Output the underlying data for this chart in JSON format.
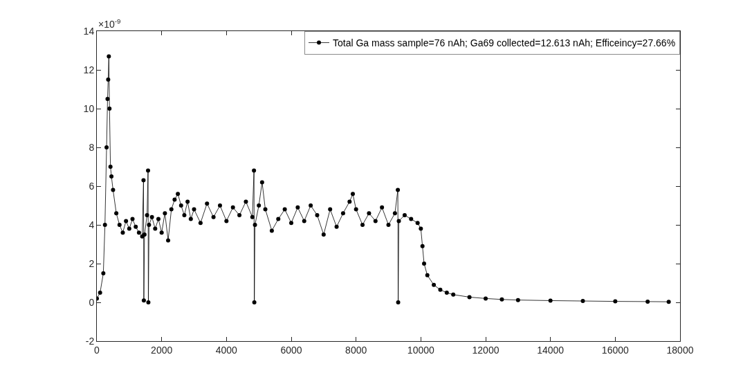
{
  "chart_data": {
    "type": "line",
    "xlim": [
      0,
      18000
    ],
    "ylim": [
      -2,
      14
    ],
    "xticks": [
      0,
      2000,
      4000,
      6000,
      8000,
      10000,
      12000,
      14000,
      16000,
      18000
    ],
    "yticks": [
      -2,
      0,
      2,
      4,
      6,
      8,
      10,
      12,
      14
    ],
    "annotations": [
      "×10$^{-9}$"
    ],
    "legend": "top right",
    "marker": "circle",
    "line_style": "solid",
    "series": [
      {
        "name": "Total Ga mass sample=76 nAh; Ga69 collected=12.613 nAh; Efficeincy=27.66%",
        "color": "#000000",
        "x": [
          0,
          100,
          200,
          250,
          300,
          330,
          350,
          370,
          390,
          420,
          450,
          500,
          600,
          700,
          800,
          900,
          1000,
          1100,
          1200,
          1300,
          1400,
          1440,
          1450,
          1470,
          1550,
          1580,
          1590,
          1610,
          1700,
          1800,
          1900,
          2000,
          2100,
          2200,
          2300,
          2400,
          2500,
          2600,
          2700,
          2800,
          2900,
          3000,
          3200,
          3400,
          3600,
          3800,
          4000,
          4200,
          4400,
          4600,
          4800,
          4850,
          4860,
          4880,
          5000,
          5100,
          5200,
          5400,
          5600,
          5800,
          6000,
          6200,
          6400,
          6600,
          6800,
          7000,
          7200,
          7400,
          7600,
          7800,
          7900,
          8000,
          8200,
          8400,
          8600,
          8800,
          9000,
          9200,
          9290,
          9300,
          9320,
          9500,
          9700,
          9900,
          10000,
          10050,
          10100,
          10200,
          10400,
          10600,
          10800,
          11000,
          11500,
          12000,
          12500,
          13000,
          14000,
          15000,
          16000,
          17000,
          17650
        ],
        "values": [
          0.2,
          0.5,
          1.5,
          4,
          8,
          10.5,
          11.5,
          12.7,
          10,
          7,
          6.5,
          5.8,
          4.6,
          4.0,
          3.6,
          4.2,
          3.8,
          4.3,
          3.9,
          3.6,
          3.4,
          6.3,
          0.1,
          3.5,
          4.5,
          6.8,
          0.0,
          4.0,
          4.4,
          3.8,
          4.3,
          3.6,
          4.6,
          3.2,
          4.8,
          5.3,
          5.6,
          5.0,
          4.5,
          5.2,
          4.3,
          4.8,
          4.1,
          5.1,
          4.4,
          5.0,
          4.2,
          4.9,
          4.5,
          5.2,
          4.4,
          6.8,
          0.0,
          4.0,
          5.0,
          6.2,
          4.8,
          3.7,
          4.3,
          4.8,
          4.1,
          4.9,
          4.2,
          5.0,
          4.5,
          3.5,
          4.8,
          3.9,
          4.6,
          5.2,
          5.6,
          4.8,
          4.0,
          4.6,
          4.2,
          4.9,
          4.0,
          4.6,
          5.8,
          0.0,
          4.2,
          4.5,
          4.3,
          4.1,
          3.8,
          2.9,
          2.0,
          1.4,
          0.9,
          0.65,
          0.5,
          0.4,
          0.27,
          0.2,
          0.15,
          0.12,
          0.09,
          0.07,
          0.05,
          0.04,
          0.03
        ]
      }
    ]
  }
}
